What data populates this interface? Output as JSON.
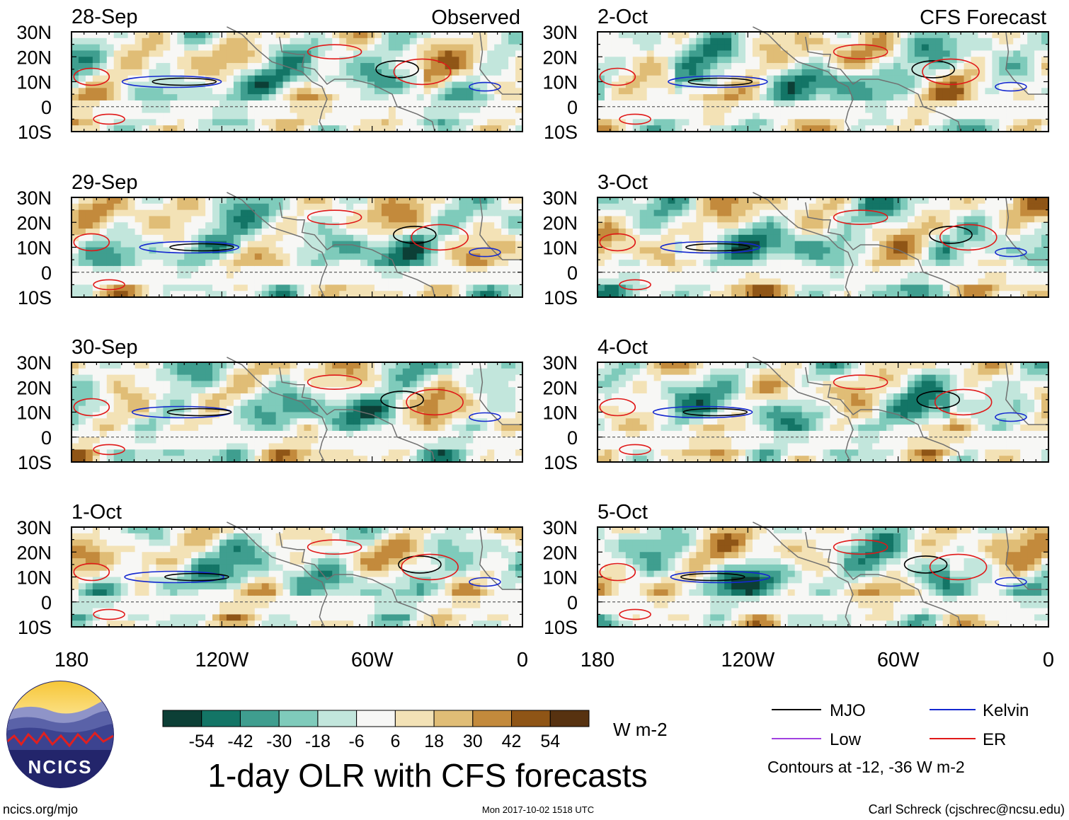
{
  "chart_data": {
    "type": "heatmap",
    "title": "1-day OLR with CFS forecasts",
    "variable": "OLR anomaly",
    "units": "W m-2",
    "lon_ticks": [
      "180",
      "120W",
      "60W",
      "0"
    ],
    "lat_ticks": [
      "30N",
      "20N",
      "10N",
      "0",
      "10S"
    ],
    "lon_range": [
      -180,
      0
    ],
    "lat_range": [
      -10,
      30
    ],
    "observed_label": "Observed",
    "forecast_label": "CFS Forecast",
    "panels": [
      {
        "date": "28-Sep",
        "kind": "observed"
      },
      {
        "date": "29-Sep",
        "kind": "observed"
      },
      {
        "date": "30-Sep",
        "kind": "observed"
      },
      {
        "date": "1-Oct",
        "kind": "observed"
      },
      {
        "date": "2-Oct",
        "kind": "forecast"
      },
      {
        "date": "3-Oct",
        "kind": "forecast"
      },
      {
        "date": "4-Oct",
        "kind": "forecast"
      },
      {
        "date": "5-Oct",
        "kind": "forecast"
      }
    ],
    "colorbar": {
      "levels": [
        "-54",
        "-42",
        "-30",
        "-18",
        "-6",
        "6",
        "18",
        "30",
        "42",
        "54"
      ],
      "colors": [
        "#0c3f36",
        "#137566",
        "#3f9e8f",
        "#7fcbbb",
        "#c2e6dc",
        "#f7f7f5",
        "#f3e2b6",
        "#e0bd76",
        "#c38a3c",
        "#8f5516",
        "#573210"
      ],
      "unit_label": "W m-2"
    },
    "legend": [
      {
        "label": "MJO",
        "color": "#000000"
      },
      {
        "label": "Kelvin",
        "color": "#1428d0"
      },
      {
        "label": "Low",
        "color": "#a040e0"
      },
      {
        "label": "ER",
        "color": "#e01818"
      }
    ],
    "contour_note": "Contours at -12, -36 W m-2"
  },
  "footer": {
    "website": "ncics.org/mjo",
    "timestamp": "Mon 2017-10-02 1518 UTC",
    "author": "Carl Schreck (cjschrec@ncsu.edu)"
  },
  "logo": {
    "text": "NCICS"
  }
}
